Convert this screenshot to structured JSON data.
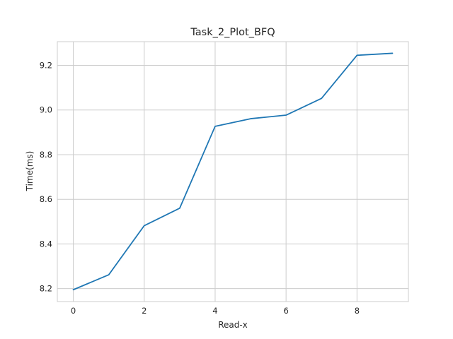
{
  "chart_data": {
    "type": "line",
    "title": "Task_2_Plot_BFQ",
    "xlabel": "Read-x",
    "ylabel": "Time(ms)",
    "x": [
      0,
      1,
      2,
      3,
      4,
      5,
      6,
      7,
      8,
      9
    ],
    "series": [
      {
        "values": [
          8.195,
          8.262,
          8.482,
          8.56,
          8.927,
          8.961,
          8.977,
          9.052,
          9.245,
          9.254
        ],
        "color": "#1f77b4"
      }
    ],
    "xlim": [
      -0.45,
      9.45
    ],
    "ylim": [
      8.142,
      9.306
    ],
    "xticks": [
      0,
      2,
      4,
      6,
      8
    ],
    "yticks": [
      8.2,
      8.4,
      8.6,
      8.8,
      9.0,
      9.2
    ],
    "ytick_labels": [
      "8.2",
      "8.4",
      "8.6",
      "8.8",
      "9.0",
      "9.2"
    ],
    "grid": true,
    "legend": "none"
  }
}
